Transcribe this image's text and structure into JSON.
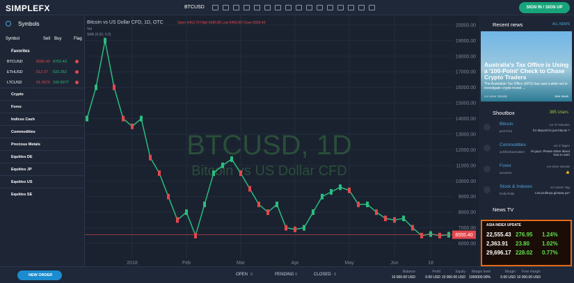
{
  "header": {
    "logo": "SIMPLEFX",
    "symbol": "BTCUSD",
    "signin": "SIGN IN / SIGN UP"
  },
  "symbols": {
    "title": "Symbols",
    "columns": [
      "Symbol",
      "Sell",
      "Buy",
      "Flag"
    ],
    "favorites": "Favorites",
    "rows": [
      [
        "BTCUSD",
        "6555.40",
        "6752.43"
      ],
      [
        "ETHUSD",
        "512.37",
        "532.252"
      ],
      [
        "LTCUSD",
        "91.0575",
        "100.8377"
      ]
    ],
    "groups": [
      "Crypto",
      "Forex",
      "Indices Cash",
      "Commodities",
      "Precious Metals",
      "Equities DE",
      "Equities JP",
      "Equities US",
      "Equities SE"
    ]
  },
  "chart_data": {
    "type": "line",
    "title": "Bitcoin vs US Dollar CFD, 1D, OTC",
    "ohlc": "Open 6463.79  High 6685.80  Low 6455.80  Close 6555.40",
    "indicators": [
      "Vol",
      "SAR (0.02, 0.2)"
    ],
    "watermark": "BTCUSD, 1D",
    "watermark_subtitle": "Bitcoin vs US Dollar CFD",
    "categories": [
      null,
      null,
      null,
      null,
      null,
      "2018",
      null,
      null,
      null,
      null,
      null,
      "Feb",
      null,
      null,
      null,
      null,
      null,
      "Mar",
      null,
      null,
      null,
      null,
      null,
      "Apr",
      null,
      null,
      null,
      null,
      null,
      "May",
      null,
      null,
      null,
      null,
      "Jun",
      null,
      null,
      null,
      "18",
      null,
      null
    ],
    "values": [
      14000,
      16000,
      19000,
      16000,
      14000,
      13500,
      14000,
      11500,
      10500,
      9000,
      7500,
      8000,
      6500,
      8500,
      10500,
      11000,
      11400,
      10500,
      9500,
      8500,
      8000,
      8500,
      7000,
      6900,
      7000,
      8000,
      9000,
      9300,
      9600,
      9400,
      8500,
      8500,
      8000,
      7600,
      7500,
      7600,
      7000,
      6500,
      6600,
      6500,
      6555.4
    ],
    "color": "#2bbd7e",
    "last_price": {
      "value": 6555.4,
      "label": "6555.40"
    },
    "ylim": [
      4530,
      20620
    ],
    "yticks": [
      {
        "value": 6000,
        "label": "6000.00"
      },
      {
        "value": 7000,
        "label": "7000.00"
      },
      {
        "value": 8000,
        "label": "8000.00"
      },
      {
        "value": 9000,
        "label": "9000.00"
      },
      {
        "value": 10000,
        "label": "10000.00"
      },
      {
        "value": 11000,
        "label": "11000.00"
      },
      {
        "value": 12000,
        "label": "12000.00"
      },
      {
        "value": 13000,
        "label": "13000.00"
      },
      {
        "value": 14000,
        "label": "14000.00"
      },
      {
        "value": 15000,
        "label": "15000.00"
      },
      {
        "value": 16000,
        "label": "16000.00"
      },
      {
        "value": 17000,
        "label": "17000.00"
      },
      {
        "value": 18000,
        "label": "18000.00"
      },
      {
        "value": 19000,
        "label": "19000.00"
      },
      {
        "value": 20000,
        "label": "20000.00"
      }
    ],
    "grid": true
  },
  "news": {
    "title": "Recent news",
    "all": "ALL NEWS",
    "headline": "Australia's Tax Office is Using a '100-Point' Check to Chase Crypto Traders",
    "snippet": "The Australian Tax Office (ATO) has cast a wide net to investigate crypto invest ...",
    "time": "vor einer Stunde",
    "link": "See news"
  },
  "shoutbox": {
    "title": "Shoutbox",
    "users": "385 Users",
    "entries": [
      {
        "topic": "Bitcoin",
        "user": "jack frost",
        "time": "vor 37 Minuten",
        "text": "for deposit its just bitcoin ?"
      },
      {
        "topic": "Commodities",
        "user": "achillesharmakker",
        "time": "vor 2 Tagen",
        "text": "Hi guys. Please share about how to earn"
      },
      {
        "topic": "Forex",
        "user": "anounes",
        "time": "vor einer Stunde",
        "text": "👍"
      },
      {
        "topic": "Stock & Indexes",
        "user": "Rully Rully",
        "time": "vor einem Tag",
        "text": "List profitnya gimana ya?"
      }
    ]
  },
  "news_tv": {
    "title": "News TV",
    "banner": "ASIA INDEX UPDATE",
    "rows": [
      [
        "22,555.43",
        "276.95",
        "1.24%"
      ],
      [
        "2,363.91",
        "23.80",
        "1.02%"
      ],
      [
        "29,696.17",
        "228.02",
        "0.77%"
      ]
    ]
  },
  "footer": {
    "new_order": "NEW ORDER",
    "tabs": [
      [
        "OPEN",
        "0"
      ],
      [
        "PENDING",
        "0"
      ],
      [
        "CLOSED",
        "0"
      ]
    ],
    "stats": [
      [
        "Balance",
        "10 000.00 USD"
      ],
      [
        "Profit",
        "0.00 USD"
      ],
      [
        "Equity",
        "10 000.00 USD"
      ],
      [
        "Margin level",
        "1000000.00%"
      ],
      [
        "Margin",
        "0.00 USD"
      ],
      [
        "Free margin",
        "10 000.00 USD"
      ]
    ]
  }
}
